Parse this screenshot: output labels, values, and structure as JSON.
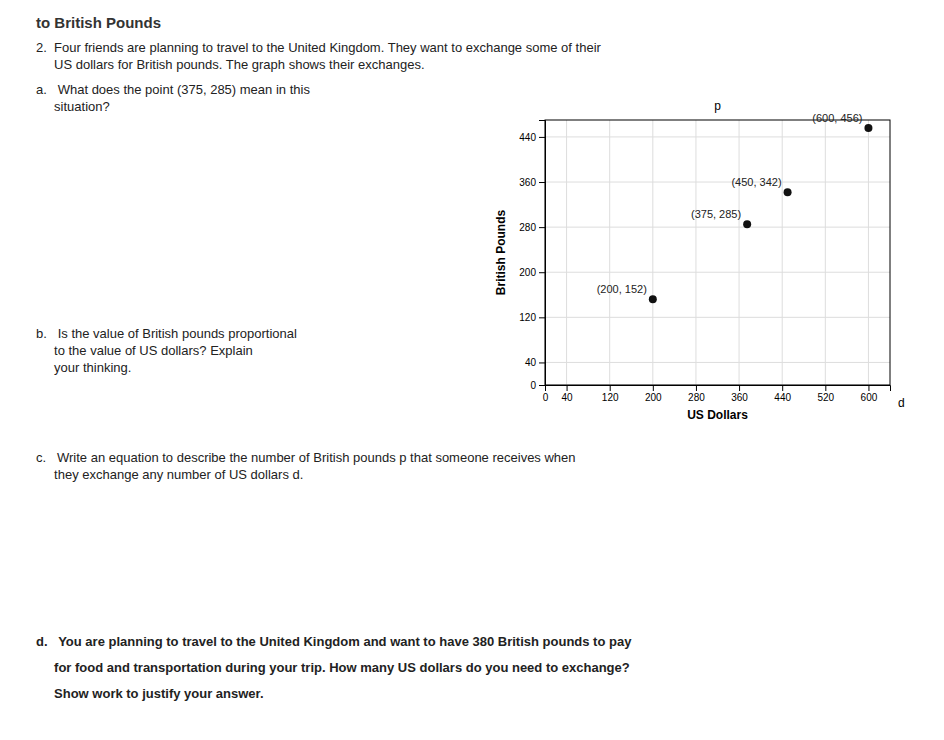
{
  "page": {
    "heading": "to British Pounds",
    "paragraphs": [
      [
        "2.  Four friends are planning to travel to the United Kingdom. They want to exchange some of their",
        "     US dollars for British pounds. The graph shows their exchanges."
      ],
      [
        "a.   What does the point (375, 285) mean in this",
        "     situation?"
      ],
      [
        "b.   Is the value of British pounds proportional",
        "     to the value of US dollars? Explain",
        "     your thinking."
      ],
      [
        "c.   Write an equation to describe the number of British pounds p that someone receives when",
        "     they exchange any number of US dollars d."
      ],
      [
        "d.   You are planning to travel to the United Kingdom and want to have 380 British pounds to pay",
        "     for food and transportation during your trip. How many US dollars do you need to exchange?",
        "     Show work to justify your answer."
      ]
    ]
  },
  "chart_data": {
    "type": "scatter",
    "x": [
      200,
      375,
      450,
      600
    ],
    "values": [
      152,
      285,
      342,
      456
    ],
    "value_labels": [
      "(200, 152)",
      "(375, 285)",
      "(450, 342)",
      "(600, 456)"
    ],
    "data_labels": true,
    "color": "#111111",
    "xlabel": "US Dollars",
    "ylabel": "British Pounds",
    "annotations": [
      "p",
      "d"
    ],
    "xlim": [
      0,
      640
    ],
    "ylim": [
      0,
      470
    ],
    "xticks": [
      0,
      40,
      120,
      200,
      280,
      360,
      440,
      520,
      600
    ],
    "yticks": [
      0,
      40,
      120,
      200,
      280,
      360,
      440
    ],
    "grid": true
  }
}
